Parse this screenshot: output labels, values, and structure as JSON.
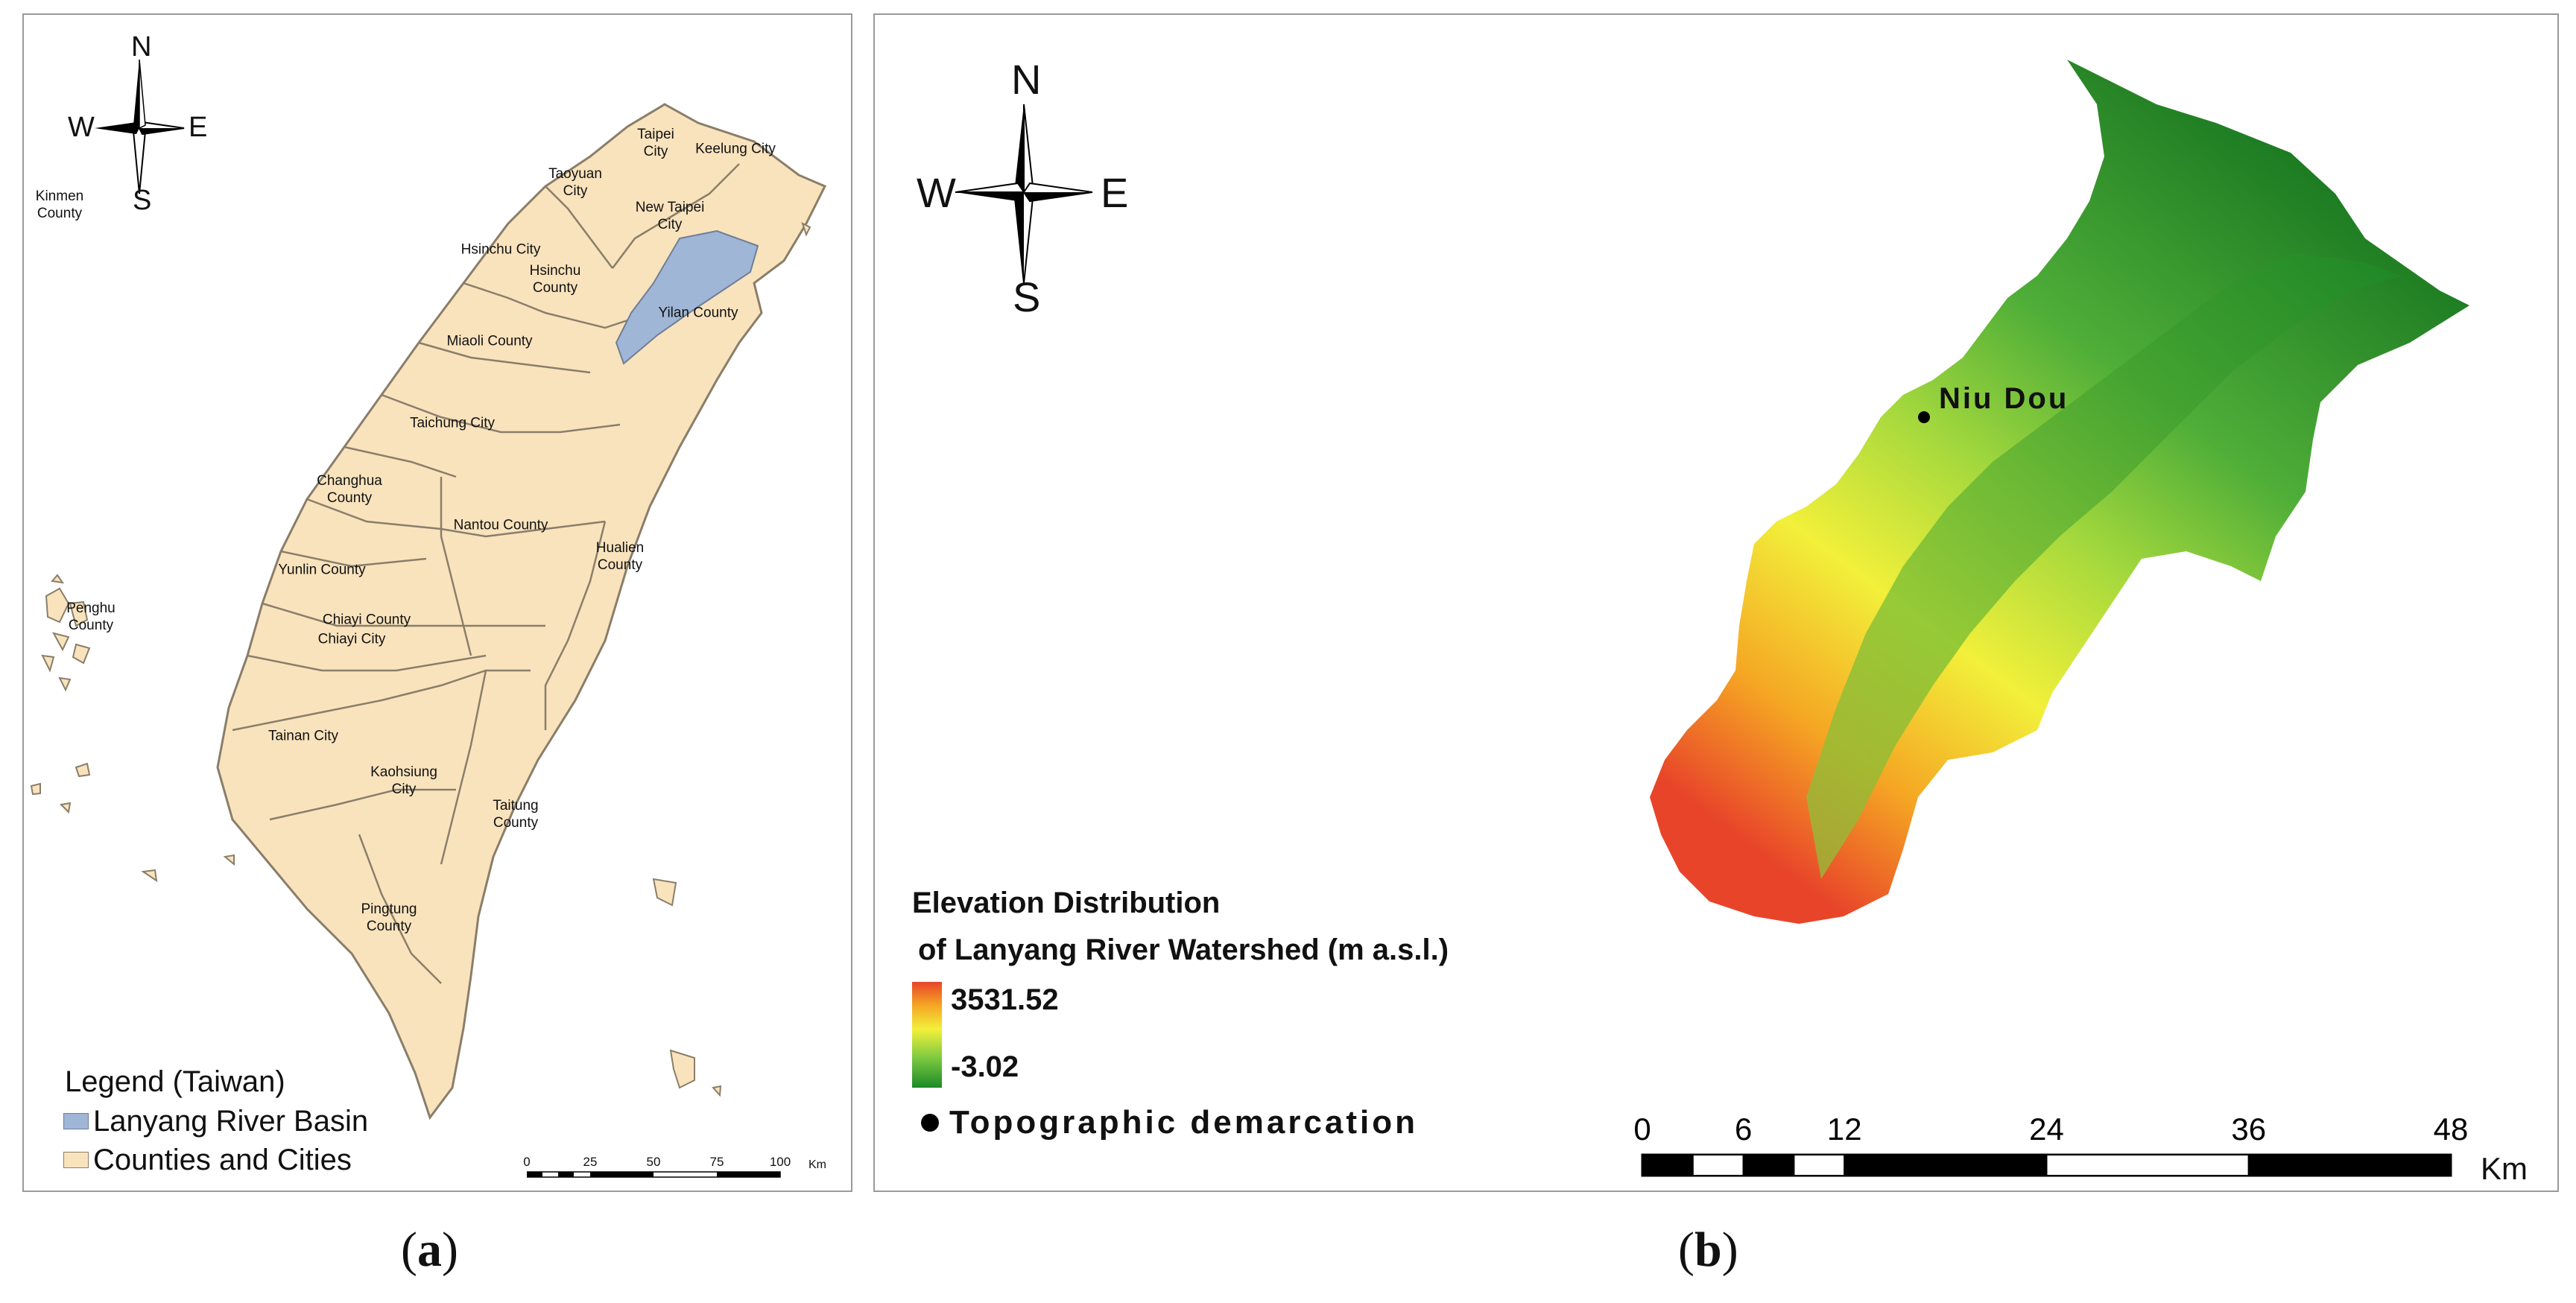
{
  "panel_a": {
    "caption_open": "(",
    "caption_letter": "a",
    "caption_close": ")",
    "compass": {
      "n": "N",
      "s": "S",
      "e": "E",
      "w": "W"
    },
    "regions": [
      {
        "id": "kinmen",
        "label": "Kinmen\nCounty"
      },
      {
        "id": "taipei",
        "label": "Taipei\nCity"
      },
      {
        "id": "keelung",
        "label": "Keelung City"
      },
      {
        "id": "taoyuan",
        "label": "Taoyuan\nCity"
      },
      {
        "id": "new-taipei",
        "label": "New Taipei\nCity"
      },
      {
        "id": "hsinchu-city",
        "label": "Hsinchu City"
      },
      {
        "id": "hsinchu-county",
        "label": "Hsinchu\nCounty"
      },
      {
        "id": "yilan",
        "label": "Yilan County"
      },
      {
        "id": "miaoli",
        "label": "Miaoli County"
      },
      {
        "id": "taichung",
        "label": "Taichung City"
      },
      {
        "id": "changhua",
        "label": "Changhua\nCounty"
      },
      {
        "id": "nantou",
        "label": "Nantou County"
      },
      {
        "id": "hualien",
        "label": "Hualien\nCounty"
      },
      {
        "id": "yunlin",
        "label": "Yunlin County"
      },
      {
        "id": "penghu",
        "label": "Penghu\nCounty"
      },
      {
        "id": "chiayi-county",
        "label": "Chiayi County"
      },
      {
        "id": "chiayi-city",
        "label": "Chiayi City"
      },
      {
        "id": "tainan",
        "label": "Tainan City"
      },
      {
        "id": "kaohsiung",
        "label": "Kaohsiung\nCity"
      },
      {
        "id": "taitung",
        "label": "Taitung\nCounty"
      },
      {
        "id": "pingtung",
        "label": "Pingtung\nCounty"
      }
    ],
    "legend": {
      "title": "Legend (Taiwan)",
      "items": [
        {
          "label": "Lanyang River Basin",
          "color": "#9fb6d6"
        },
        {
          "label": "Counties and Cities",
          "color": "#f9e3bd"
        }
      ]
    },
    "scale_bar": {
      "ticks": [
        "0",
        "25",
        "50",
        "75",
        "100"
      ],
      "unit": "Km"
    }
  },
  "panel_b": {
    "caption_open": "(",
    "caption_letter": "b",
    "caption_close": ")",
    "compass": {
      "n": "N",
      "s": "S",
      "e": "E",
      "w": "W"
    },
    "point_label": "Niu Dou",
    "legend": {
      "title_line1": "Elevation Distribution",
      "title_line2": "of Lanyang River Watershed (m a.s.l.)",
      "max_value": "3531.52",
      "min_value": "-3.02",
      "gradient_colors": [
        "#e8442a",
        "#f5a623",
        "#f2f03a",
        "#7cc940",
        "#1c8a27"
      ],
      "point_legend": "Topographic demarcation"
    },
    "scale_bar": {
      "ticks": [
        "0",
        "6",
        "12",
        "24",
        "36",
        "48"
      ],
      "tick_values": [
        0,
        6,
        12,
        24,
        36,
        48
      ],
      "unit": "Km"
    }
  }
}
